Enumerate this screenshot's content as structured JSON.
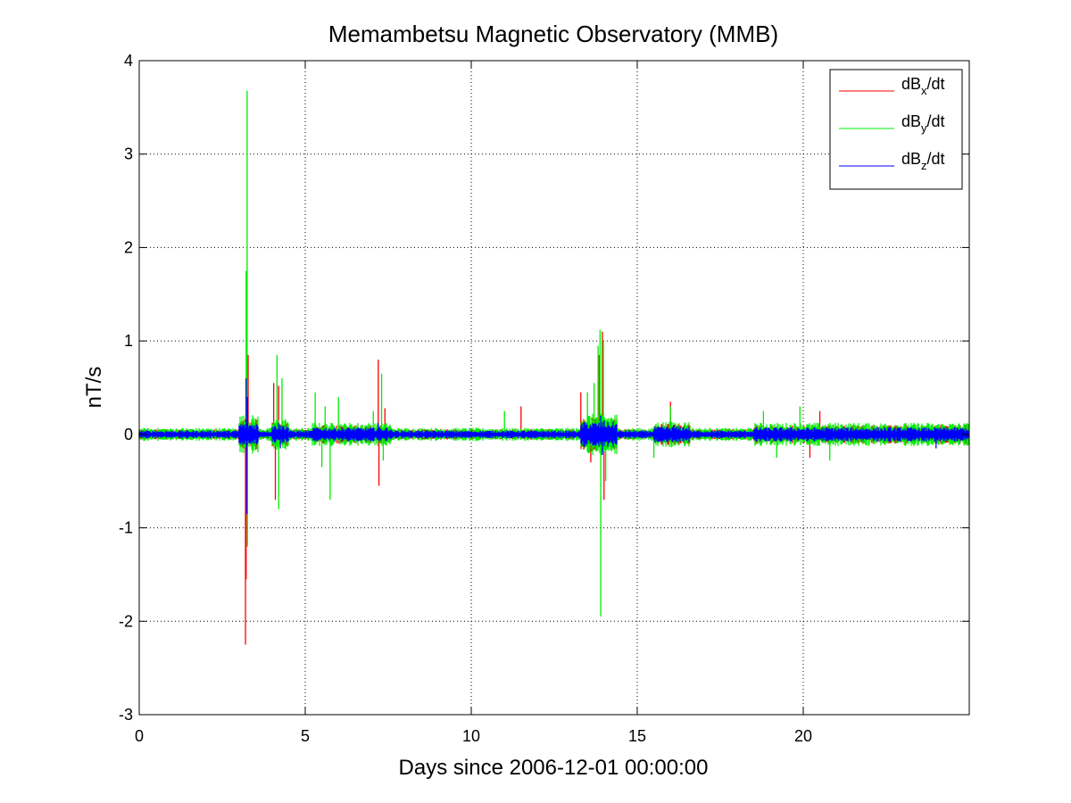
{
  "chart_data": {
    "type": "line",
    "title": "Memambetsu Magnetic Observatory (MMB)",
    "xlabel": "Days since 2006-12-01 00:00:00",
    "ylabel": "nT/s",
    "xlim": [
      0,
      25
    ],
    "ylim": [
      -3,
      4
    ],
    "xticks": [
      0,
      5,
      10,
      15,
      20
    ],
    "xtick_labels": [
      "0",
      "5",
      "10",
      "15",
      "20"
    ],
    "yticks": [
      -3,
      -2,
      -1,
      0,
      1,
      2,
      3,
      4
    ],
    "ytick_labels": [
      "-3",
      "-2",
      "-1",
      "0",
      "1",
      "2",
      "3",
      "4"
    ],
    "grid": true,
    "legend_position": "top-right",
    "series": [
      {
        "name": "dBx/dt",
        "label_base": "dB",
        "label_sub": "x",
        "label_tail": "/dt",
        "color": "#ff0000",
        "baseline": 0.04,
        "spikes": [
          {
            "x": 3.2,
            "y": -2.25
          },
          {
            "x": 3.22,
            "y": -1.55
          },
          {
            "x": 3.28,
            "y": 0.85
          },
          {
            "x": 4.05,
            "y": 0.55
          },
          {
            "x": 4.1,
            "y": -0.7
          },
          {
            "x": 4.2,
            "y": 0.52
          },
          {
            "x": 7.2,
            "y": 0.8
          },
          {
            "x": 7.22,
            "y": -0.55
          },
          {
            "x": 7.4,
            "y": 0.28
          },
          {
            "x": 11.5,
            "y": 0.3
          },
          {
            "x": 13.3,
            "y": 0.45
          },
          {
            "x": 13.6,
            "y": -0.3
          },
          {
            "x": 13.85,
            "y": 0.85
          },
          {
            "x": 13.95,
            "y": 1.1
          },
          {
            "x": 14.0,
            "y": -0.7
          },
          {
            "x": 16.0,
            "y": 0.35
          },
          {
            "x": 20.2,
            "y": -0.25
          },
          {
            "x": 20.5,
            "y": 0.25
          }
        ]
      },
      {
        "name": "dBy/dt",
        "label_base": "dB",
        "label_sub": "y",
        "label_tail": "/dt",
        "color": "#00ee00",
        "baseline": 0.05,
        "spikes": [
          {
            "x": 3.22,
            "y": 1.75
          },
          {
            "x": 3.25,
            "y": 3.68
          },
          {
            "x": 3.26,
            "y": -1.2
          },
          {
            "x": 4.15,
            "y": 0.85
          },
          {
            "x": 4.2,
            "y": -0.8
          },
          {
            "x": 4.3,
            "y": 0.6
          },
          {
            "x": 5.3,
            "y": 0.45
          },
          {
            "x": 5.5,
            "y": -0.35
          },
          {
            "x": 5.6,
            "y": 0.3
          },
          {
            "x": 5.75,
            "y": -0.7
          },
          {
            "x": 6.0,
            "y": 0.4
          },
          {
            "x": 7.05,
            "y": 0.25
          },
          {
            "x": 7.3,
            "y": 0.65
          },
          {
            "x": 7.35,
            "y": -0.28
          },
          {
            "x": 11.0,
            "y": 0.25
          },
          {
            "x": 13.5,
            "y": 0.45
          },
          {
            "x": 13.7,
            "y": 0.55
          },
          {
            "x": 13.82,
            "y": 0.95
          },
          {
            "x": 13.88,
            "y": 1.12
          },
          {
            "x": 13.9,
            "y": -1.95
          },
          {
            "x": 13.98,
            "y": 1.0
          },
          {
            "x": 14.05,
            "y": -0.5
          },
          {
            "x": 15.5,
            "y": -0.25
          },
          {
            "x": 16.0,
            "y": 0.3
          },
          {
            "x": 18.8,
            "y": 0.25
          },
          {
            "x": 19.2,
            "y": -0.25
          },
          {
            "x": 19.9,
            "y": 0.3
          },
          {
            "x": 20.8,
            "y": -0.28
          }
        ]
      },
      {
        "name": "dBz/dt",
        "label_base": "dB",
        "label_sub": "z",
        "label_tail": "/dt",
        "color": "#0000ff",
        "baseline": 0.03,
        "spikes": [
          {
            "x": 3.22,
            "y": 0.6
          },
          {
            "x": 3.24,
            "y": -0.85
          },
          {
            "x": 3.26,
            "y": 0.4
          },
          {
            "x": 4.2,
            "y": 0.12
          },
          {
            "x": 4.25,
            "y": -0.15
          },
          {
            "x": 7.2,
            "y": 0.12
          },
          {
            "x": 13.9,
            "y": 0.2
          },
          {
            "x": 13.95,
            "y": -0.22
          },
          {
            "x": 14.0,
            "y": 0.15
          },
          {
            "x": 16.1,
            "y": 0.1
          },
          {
            "x": 24.0,
            "y": -0.15
          }
        ]
      }
    ]
  }
}
